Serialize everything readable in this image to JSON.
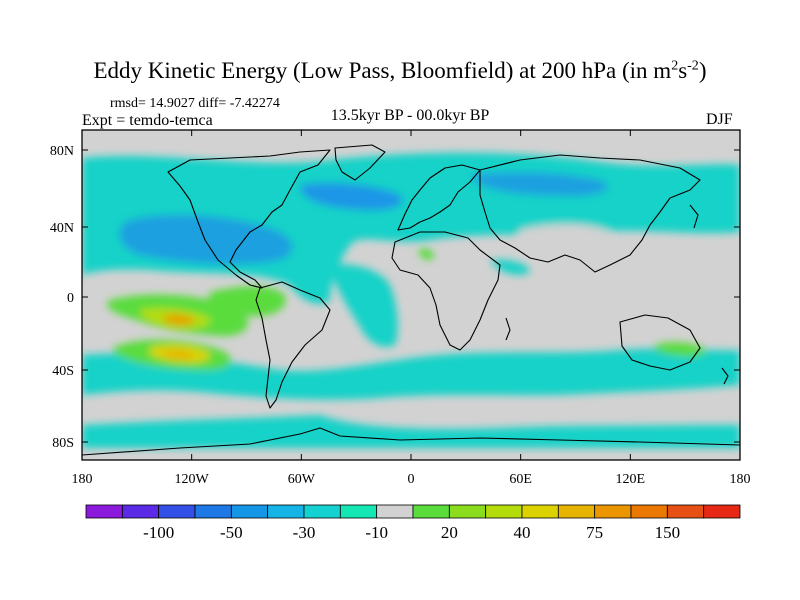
{
  "title": {
    "main": "Eddy Kinetic Energy (Low Pass, Bloomfield) at 200 hPa (in m",
    "sup1": "2",
    "mid": "s",
    "sup2": "-2",
    "end": ")"
  },
  "stats": {
    "rmsd_label": "rmsd= 14.9027",
    "diff_label": "diff= -7.42274"
  },
  "experiment": "Expt = temdo-temca",
  "period": "13.5kyr BP - 00.0kyr BP",
  "season": "DJF",
  "map": {
    "lon_ticks": [
      "180",
      "120W",
      "60W",
      "0",
      "60E",
      "120E",
      "180"
    ],
    "lat_ticks": [
      "80N",
      "40N",
      "0",
      "40S",
      "80S"
    ],
    "land_color": "#d2d2d2",
    "coast_color": "#000000"
  },
  "colorbar": {
    "colors": [
      "#8c1adc",
      "#5a2ae6",
      "#3250e6",
      "#1e78e6",
      "#1496e6",
      "#14b4e6",
      "#14d2d2",
      "#14e6b4",
      "#d2d2d2",
      "#5adc3c",
      "#8cdc1e",
      "#b4dc0a",
      "#dcd200",
      "#e6b400",
      "#eb9600",
      "#eb7800",
      "#e65014",
      "#e62814"
    ],
    "labels": [
      "-100",
      "-50",
      "-30",
      "-10",
      "20",
      "40",
      "75",
      "150"
    ]
  }
}
